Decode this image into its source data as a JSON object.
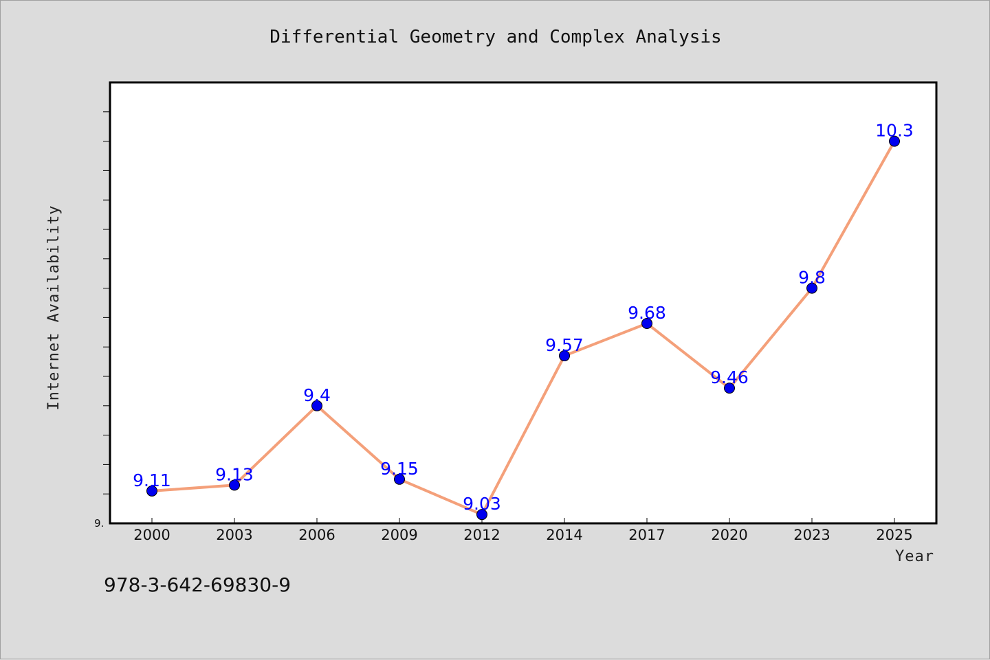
{
  "chart_data": {
    "type": "line",
    "title": "Differential Geometry and Complex Analysis",
    "xlabel": "Year",
    "ylabel": "Internet Availability",
    "categories": [
      "2000",
      "2003",
      "2006",
      "2009",
      "2012",
      "2014",
      "2017",
      "2020",
      "2023",
      "2025"
    ],
    "series": [
      {
        "values": [
          9.11,
          9.13,
          9.4,
          9.15,
          9.03,
          9.57,
          9.68,
          9.46,
          9.8,
          10.3
        ],
        "labels": [
          "9.11",
          "9.13",
          "9.4",
          "9.15",
          "9.03",
          "9.57",
          "9.68",
          "9.46",
          "9.8",
          "10.3"
        ],
        "line_color": "#f4a07a",
        "marker_color": "#0000ee"
      }
    ],
    "ylim": [
      9.0,
      10.5
    ],
    "y_tick_label": "9.",
    "grid": false,
    "legend": "none"
  },
  "footer": {
    "isbn": "978-3-642-69830-9"
  },
  "colors": {
    "background": "#dcdcdc",
    "plot_background": "#ffffff",
    "label_color": "#0000ff"
  }
}
